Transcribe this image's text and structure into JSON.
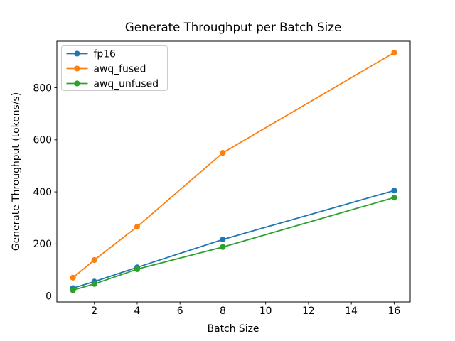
{
  "chart_data": {
    "type": "line",
    "title": "Generate Throughput per Batch Size",
    "xlabel": "Batch Size",
    "ylabel": "Generate Throughput (tokens/s)",
    "x": [
      1,
      2,
      4,
      8,
      16
    ],
    "series": [
      {
        "name": "fp16",
        "color": "#1f77b4",
        "values": [
          30,
          55,
          110,
          217,
          405
        ]
      },
      {
        "name": "awq_fused",
        "color": "#ff7f0e",
        "values": [
          70,
          138,
          266,
          550,
          935
        ]
      },
      {
        "name": "awq_unfused",
        "color": "#2ca02c",
        "values": [
          22,
          46,
          103,
          188,
          378
        ]
      }
    ],
    "xticks": [
      2,
      4,
      6,
      8,
      10,
      12,
      14,
      16
    ],
    "yticks": [
      0,
      200,
      400,
      600,
      800
    ],
    "xlim": [
      0.25,
      16.75
    ],
    "ylim": [
      -23,
      979
    ],
    "legend_position": "upper left",
    "grid": false,
    "marker": "circle",
    "line_style": "solid",
    "background_color": "#ffffff",
    "axis_color": "#000000"
  }
}
